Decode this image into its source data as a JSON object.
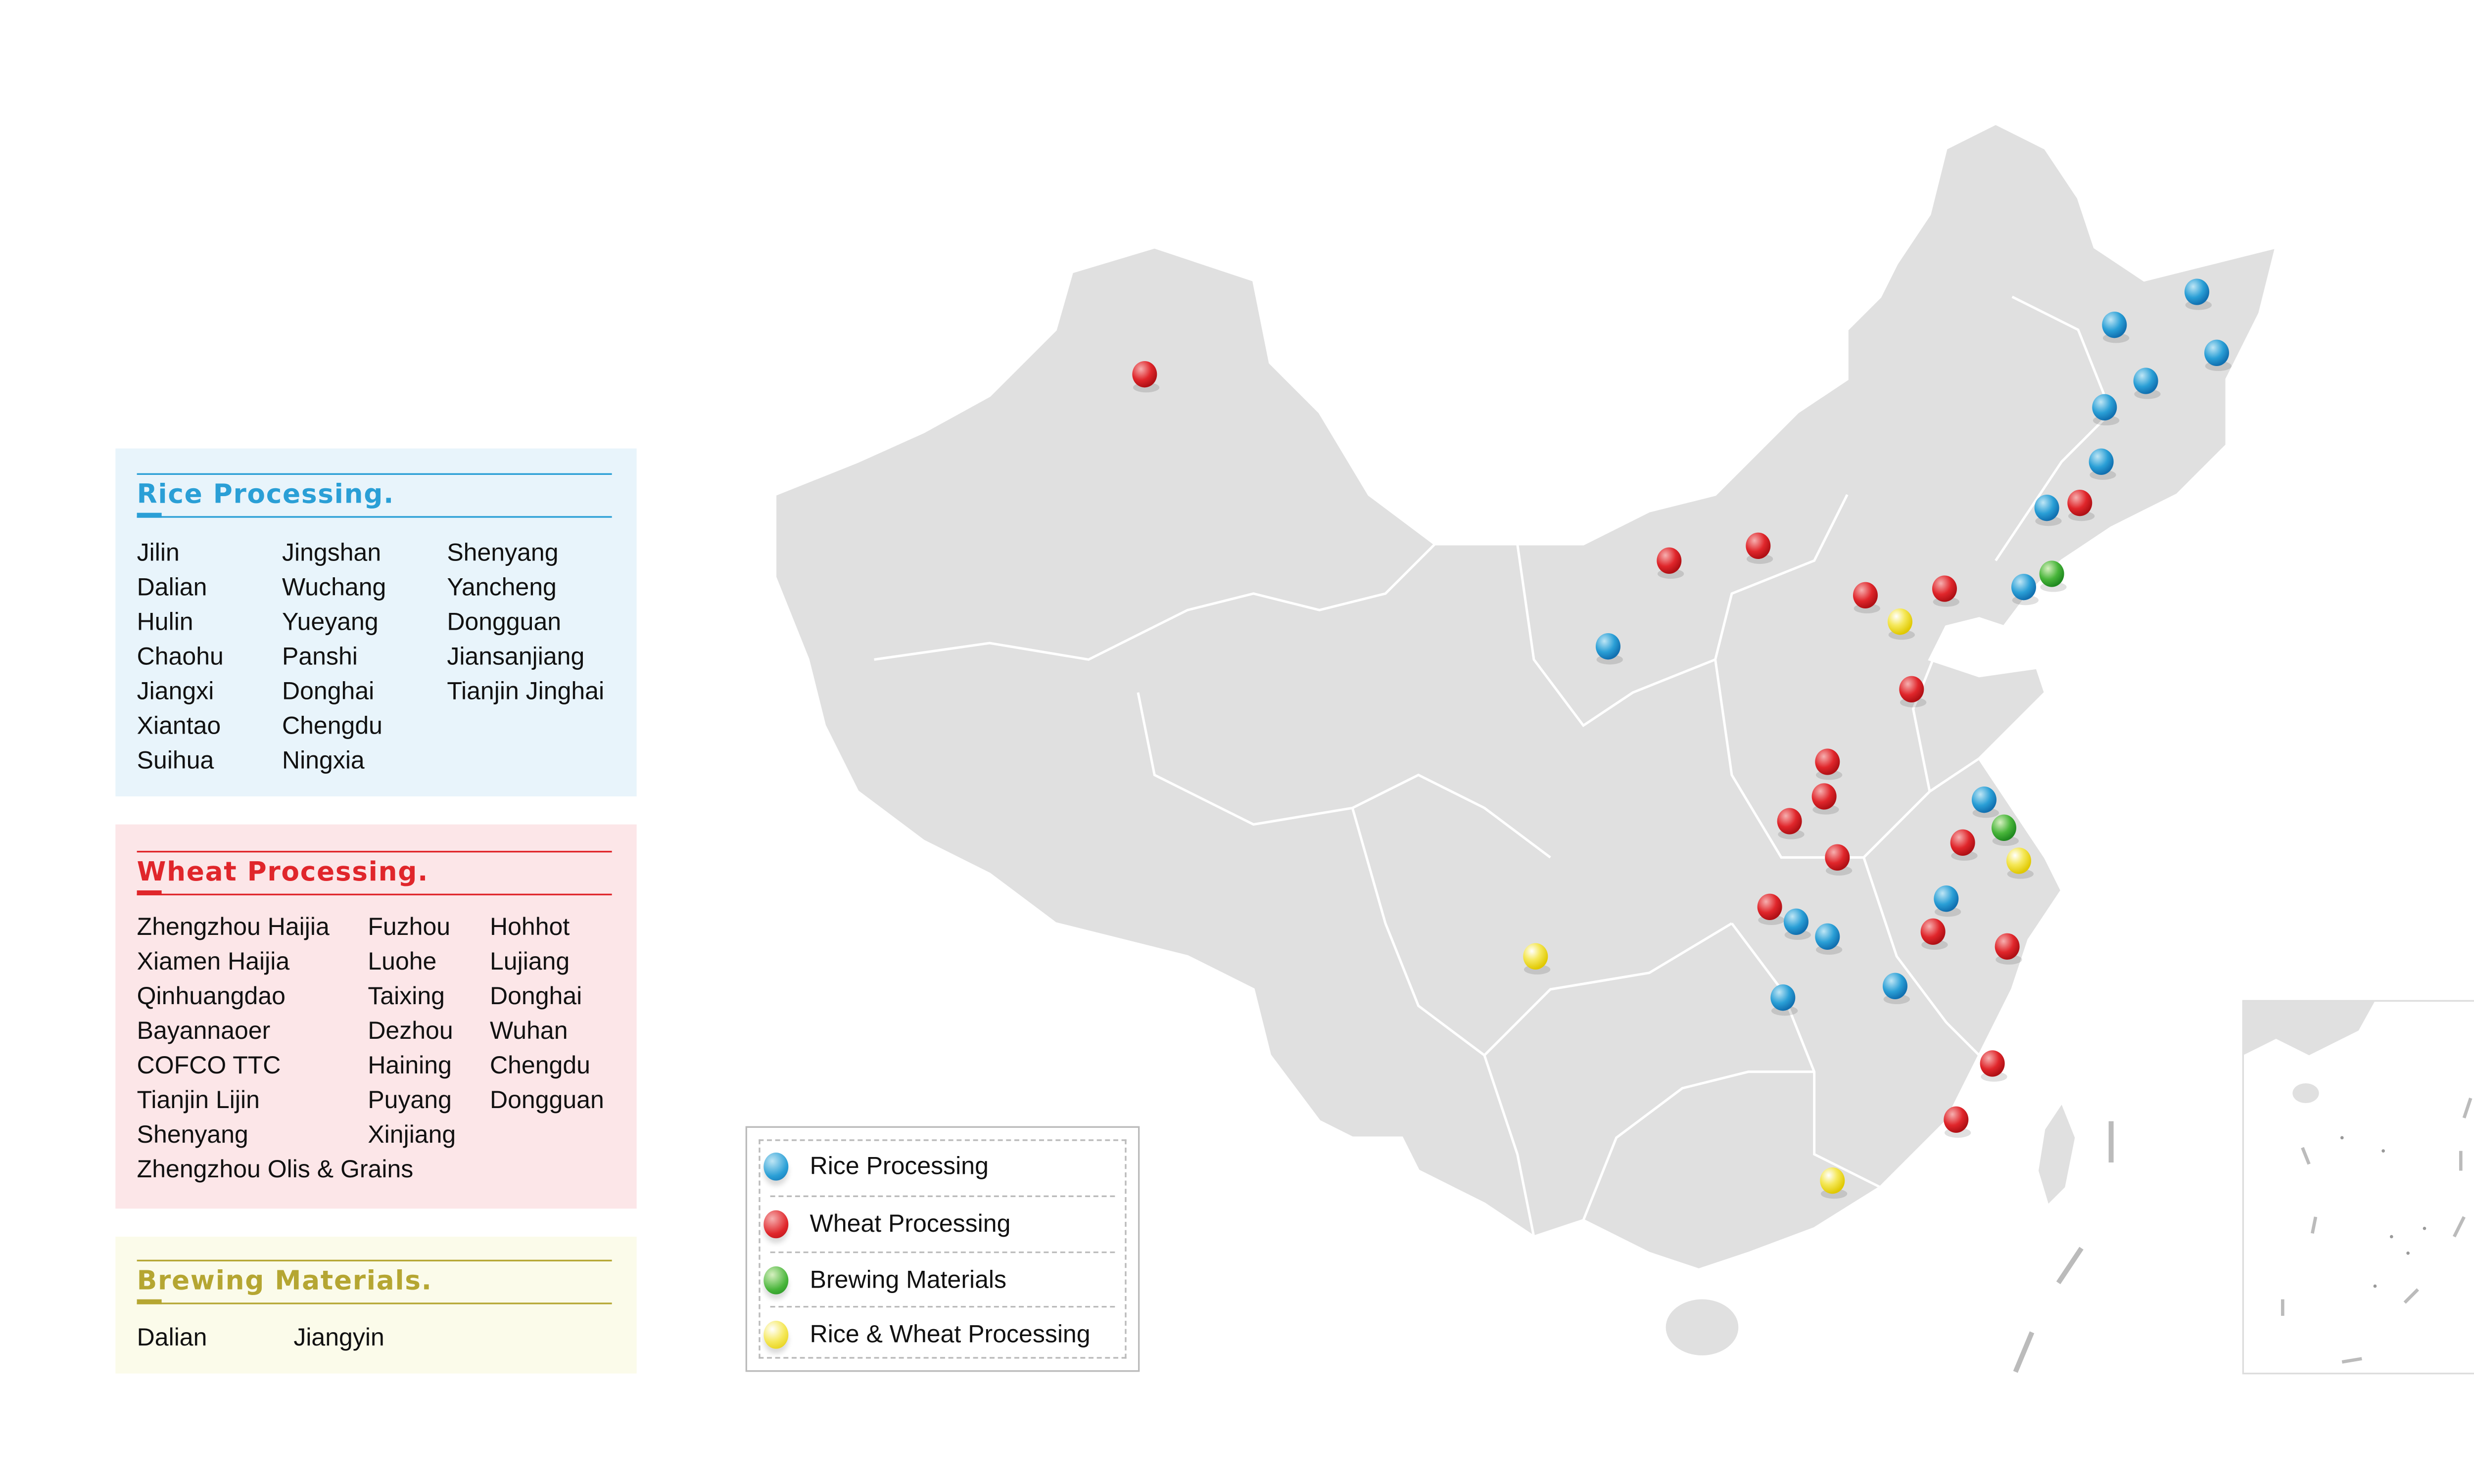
{
  "colors": {
    "rice": "#2a9fd6",
    "wheat": "#e0262b",
    "brewing": "#48b53a",
    "rice_wheat": "#f0dc1a",
    "map_fill": "#e0e0e0",
    "brewing_title": "#b5a632"
  },
  "rice_panel": {
    "title": "Rice Processing.",
    "columns": [
      [
        "Jilin",
        "Dalian",
        "Hulin",
        "Chaohu",
        "Jiangxi",
        "Xiantao",
        "Suihua"
      ],
      [
        "Jingshan",
        "Wuchang",
        "Yueyang",
        "Panshi",
        "Donghai",
        "Chengdu",
        "Ningxia"
      ],
      [
        "Shenyang",
        "Yancheng",
        "Dongguan",
        "Jiansanjiang",
        "Tianjin Jinghai"
      ]
    ]
  },
  "wheat_panel": {
    "title": "Wheat Processing.",
    "columns": [
      [
        "Zhengzhou Haijia",
        "Xiamen Haijia",
        "Qinhuangdao",
        "Bayannaoer",
        "COFCO TTC",
        "Tianjin Lijin",
        "Shenyang",
        "Zhengzhou Olis & Grains"
      ],
      [
        "Fuzhou",
        "Luohe",
        "Taixing",
        "Dezhou",
        "Haining",
        "Puyang",
        "Xinjiang"
      ],
      [
        "Hohhot",
        "Lujiang",
        "Donghai",
        "Wuhan",
        "Chengdu",
        "Dongguan"
      ]
    ]
  },
  "brewing_panel": {
    "title": "Brewing Materials.",
    "columns": [
      [
        "Dalian"
      ],
      [
        "Jiangyin"
      ]
    ]
  },
  "legend": [
    {
      "label": "Rice Processing",
      "type": "rice"
    },
    {
      "label": "Wheat Processing",
      "type": "wheat"
    },
    {
      "label": "Brewing Materials",
      "type": "brewing"
    },
    {
      "label": "Rice & Wheat Processing",
      "type": "rice_wheat"
    }
  ]
}
